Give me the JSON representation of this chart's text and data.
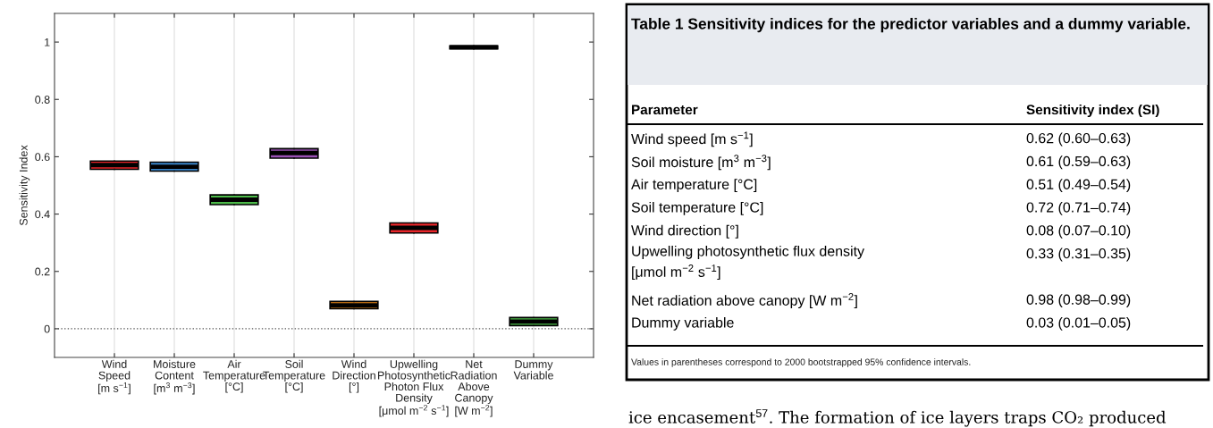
{
  "chart_data": [
    {
      "type": "box",
      "ylabel": "Sensitivity Index",
      "categories": [
        "Wind\nSpeed\n[m s$^{−1}$]",
        "Moisture\nContent\n[m$^{3}$ m$^{−3}$]",
        "Air\nTemperature\n[°C]",
        "Soil\nTemperature\n[°C]",
        "Wind\nDirection\n[°]",
        "Upwelling\nPhotosynthetic\nPhoton Flux\nDensity\n[μmol m$^{−2}$ s$^{−1}$]",
        "Net\nRadiation\nAbove\nCanopy\n[W m$^{−2}$]",
        "Dummy\nVariable"
      ],
      "boxes": [
        {
          "low": 0.556,
          "q1": 0.556,
          "median": 0.571,
          "q3": 0.585,
          "high": 0.585
        },
        {
          "low": 0.55,
          "q1": 0.55,
          "median": 0.565,
          "q3": 0.581,
          "high": 0.581
        },
        {
          "low": 0.433,
          "q1": 0.433,
          "median": 0.45,
          "q3": 0.467,
          "high": 0.467
        },
        {
          "low": 0.595,
          "q1": 0.595,
          "median": 0.613,
          "q3": 0.628,
          "high": 0.628
        },
        {
          "low": 0.07,
          "q1": 0.07,
          "median": 0.082,
          "q3": 0.095,
          "high": 0.095
        },
        {
          "low": 0.334,
          "q1": 0.334,
          "median": 0.352,
          "q3": 0.369,
          "high": 0.369
        },
        {
          "low": 0.976,
          "q1": 0.976,
          "median": 0.982,
          "q3": 0.987,
          "high": 0.987
        },
        {
          "low": 0.011,
          "q1": 0.011,
          "median": 0.025,
          "q3": 0.039,
          "high": 0.039
        }
      ],
      "colors": [
        "#e8262a",
        "#3a85c8",
        "#4dbb4a",
        "#9b52b5",
        "#f08c1a",
        "#e8262a",
        "#000000",
        "#4dbb4a"
      ],
      "ylim": [
        -0.1,
        1.1
      ],
      "yticks": [
        0,
        0.2,
        0.4,
        0.6,
        0.8,
        1
      ],
      "grid": "x",
      "legend": false,
      "ref_lines": [
        {
          "axis": "y",
          "value": 0,
          "line_style": "dotted",
          "color": "#555555"
        }
      ]
    },
    {
      "type": "other",
      "title": "Table 1 Sensitivity indices for the predictor variables and a dummy variable.",
      "annotations": [
        "Parameter",
        "Sensitivity index (SI)",
        "Wind speed [m s$^{−1}$]",
        "0.62 (0.60–0.63)",
        "Soil moisture [m$^{3}$ m$^{−3}$]",
        "0.61 (0.59–0.63)",
        "Air temperature [°C]",
        "0.51 (0.49–0.54)",
        "Soil temperature [°C]",
        "0.72 (0.71–0.74)",
        "Wind direction [°]",
        "0.08 (0.07–0.10)",
        "Upwelling photosynthetic flux density\n[μmol m$^{−2}$ s$^{−1}$]",
        "0.33 (0.31–0.35)",
        "Net radiation above canopy [W m$^{−2}$]",
        "0.98 (0.98–0.99)",
        "Dummy variable",
        "0.03 (0.01–0.05)",
        "Values in parentheses correspond to 2000 bootstrapped 95% confidence intervals.",
        "ice encasement$^{57}$. The formation of ice layers traps CO₂ produced"
      ]
    }
  ]
}
